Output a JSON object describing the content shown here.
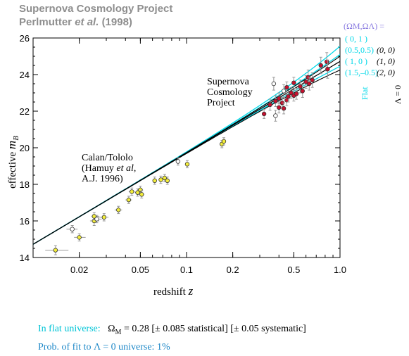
{
  "header": {
    "line1": "Supernova Cosmology Project",
    "line2_main": "Perlmutter",
    "line2_etal": "et al.",
    "line2_year": "(1998)"
  },
  "colors": {
    "scp_fill": "#c8102e",
    "calan_fill": "#f4ee3a",
    "flat_cyan": "#00d8e8",
    "legend_purple": "#8a7be0",
    "lambda_black": "#000000",
    "prob_blue": "#1e88c8"
  },
  "chart_data": {
    "type": "scatter",
    "xscale": "log",
    "xlim": [
      0.01,
      1.0
    ],
    "ylim": [
      14,
      26
    ],
    "xlabel": "redshift",
    "xlabel_var": "z",
    "ylabel": "effective",
    "ylabel_var": "m",
    "ylabel_sub": "B",
    "xticks": [
      0.02,
      0.05,
      0.1,
      0.2,
      0.5,
      1.0
    ],
    "xtick_labels": [
      "0.02",
      "0.05",
      "0.1",
      "0.2",
      "0.5",
      "1.0"
    ],
    "yticks": [
      14,
      16,
      18,
      20,
      22,
      24,
      26
    ],
    "ytick_labels": [
      "14",
      "16",
      "18",
      "20",
      "22",
      "24",
      "26"
    ],
    "labels": {
      "calan": [
        "Calan/Tololo",
        "(Hamuy ",
        "et al",
        ",",
        "A.J. 1996)"
      ],
      "scp": [
        "Supernova",
        "Cosmology",
        "Project"
      ]
    },
    "legend": {
      "header": "(Ω",
      "header_full": "(ΩM,ΩΛ) =",
      "flat": [
        "( 0,   1 )",
        "(0.5,0.5)",
        "( 1,   0 )",
        "(1.5,–0.5)"
      ],
      "lambda0": [
        "(0, 0)",
        "(1, 0)",
        "(2, 0)"
      ],
      "flat_label": "Flat",
      "lambda_label": "Λ = 0"
    },
    "models": [
      {
        "group": "flat",
        "omega_m": 0,
        "omega_l": 1,
        "z1": 0.5,
        "m_at_1": 25.55
      },
      {
        "group": "flat",
        "omega_m": 0.5,
        "omega_l": 0.5,
        "m_at_1": 25.1
      },
      {
        "group": "flat",
        "omega_m": 1,
        "omega_l": 0,
        "m_at_1": 24.72
      },
      {
        "group": "flat",
        "omega_m": 1.5,
        "omega_l": -0.5,
        "m_at_1": 24.45
      },
      {
        "group": "lambda0",
        "omega_m": 0,
        "omega_l": 0,
        "m_at_1": 25.0
      },
      {
        "group": "lambda0",
        "omega_m": 1,
        "omega_l": 0,
        "m_at_1": 24.72
      },
      {
        "group": "lambda0",
        "omega_m": 2,
        "omega_l": 0,
        "m_at_1": 24.25
      }
    ],
    "calan_points": [
      {
        "z": 0.014,
        "m": 14.4,
        "exl": 0.012,
        "exh": 0.017,
        "ey": 0.25,
        "open": false
      },
      {
        "z": 0.018,
        "m": 15.55,
        "exl": 0.0165,
        "exh": 0.0195,
        "ey": 0.2,
        "open": true
      },
      {
        "z": 0.02,
        "m": 15.1,
        "exl": 0.0185,
        "exh": 0.022,
        "ey": 0.2,
        "open": false
      },
      {
        "z": 0.025,
        "m": 16.0,
        "exl": 0.0235,
        "exh": 0.027,
        "ey": 0.25,
        "open": false
      },
      {
        "z": 0.025,
        "m": 16.25,
        "exl": 0.024,
        "exh": 0.027,
        "ey": 0.2,
        "open": false
      },
      {
        "z": 0.026,
        "m": 16.1,
        "exl": 0.025,
        "exh": 0.028,
        "ey": 0.2,
        "open": true
      },
      {
        "z": 0.029,
        "m": 16.2,
        "exl": 0.027,
        "exh": 0.031,
        "ey": 0.2,
        "open": false
      },
      {
        "z": 0.036,
        "m": 16.6,
        "exl": 0.034,
        "exh": 0.038,
        "ey": 0.2,
        "open": false
      },
      {
        "z": 0.042,
        "m": 17.15,
        "exl": 0.04,
        "exh": 0.044,
        "ey": 0.2,
        "open": false
      },
      {
        "z": 0.044,
        "m": 17.6,
        "exl": 0.042,
        "exh": 0.046,
        "ey": 0.2,
        "open": false
      },
      {
        "z": 0.048,
        "m": 17.55,
        "exl": 0.046,
        "exh": 0.05,
        "ey": 0.2,
        "open": false
      },
      {
        "z": 0.05,
        "m": 17.7,
        "exl": 0.048,
        "exh": 0.052,
        "ey": 0.2,
        "open": false
      },
      {
        "z": 0.051,
        "m": 17.45,
        "exl": 0.049,
        "exh": 0.053,
        "ey": 0.2,
        "open": false
      },
      {
        "z": 0.062,
        "m": 18.2,
        "exl": 0.06,
        "exh": 0.064,
        "ey": 0.2,
        "open": false
      },
      {
        "z": 0.068,
        "m": 18.25,
        "exl": 0.066,
        "exh": 0.07,
        "ey": 0.2,
        "open": false
      },
      {
        "z": 0.072,
        "m": 18.35,
        "exl": 0.07,
        "exh": 0.074,
        "ey": 0.2,
        "open": false
      },
      {
        "z": 0.075,
        "m": 18.2,
        "exl": 0.073,
        "exh": 0.077,
        "ey": 0.2,
        "open": false
      },
      {
        "z": 0.088,
        "m": 19.25,
        "exl": 0.086,
        "exh": 0.09,
        "ey": 0.2,
        "open": true
      },
      {
        "z": 0.101,
        "m": 19.1,
        "exl": 0.099,
        "exh": 0.103,
        "ey": 0.2,
        "open": false
      },
      {
        "z": 0.17,
        "m": 20.2,
        "exl": 0.168,
        "exh": 0.172,
        "ey": 0.2,
        "open": false
      },
      {
        "z": 0.175,
        "m": 20.35,
        "exl": 0.173,
        "exh": 0.177,
        "ey": 0.2,
        "open": false
      }
    ],
    "scp_points": [
      {
        "z": 0.32,
        "m": 21.85,
        "ey": 0.25,
        "open": false
      },
      {
        "z": 0.35,
        "m": 22.35,
        "ey": 0.3,
        "open": false
      },
      {
        "z": 0.37,
        "m": 23.5,
        "ey": 0.35,
        "open": true
      },
      {
        "z": 0.38,
        "m": 21.75,
        "ey": 0.3,
        "open": true
      },
      {
        "z": 0.38,
        "m": 22.55,
        "ey": 0.3,
        "open": false
      },
      {
        "z": 0.4,
        "m": 22.2,
        "ey": 0.3,
        "open": false
      },
      {
        "z": 0.4,
        "m": 22.7,
        "ey": 0.3,
        "open": false
      },
      {
        "z": 0.42,
        "m": 22.45,
        "ey": 0.3,
        "open": false
      },
      {
        "z": 0.43,
        "m": 23.1,
        "ey": 0.35,
        "open": true
      },
      {
        "z": 0.43,
        "m": 22.15,
        "ey": 0.3,
        "open": false
      },
      {
        "z": 0.45,
        "m": 22.6,
        "ey": 0.3,
        "open": false
      },
      {
        "z": 0.45,
        "m": 23.3,
        "ey": 0.3,
        "open": false
      },
      {
        "z": 0.46,
        "m": 22.8,
        "ey": 0.3,
        "open": false
      },
      {
        "z": 0.48,
        "m": 23.0,
        "ey": 0.3,
        "open": false
      },
      {
        "z": 0.5,
        "m": 22.85,
        "ey": 0.3,
        "open": false
      },
      {
        "z": 0.5,
        "m": 23.55,
        "ey": 0.3,
        "open": false
      },
      {
        "z": 0.52,
        "m": 22.95,
        "ey": 0.3,
        "open": false
      },
      {
        "z": 0.55,
        "m": 23.35,
        "ey": 0.35,
        "open": false
      },
      {
        "z": 0.57,
        "m": 23.1,
        "ey": 0.35,
        "open": false
      },
      {
        "z": 0.6,
        "m": 23.6,
        "ey": 0.35,
        "open": false
      },
      {
        "z": 0.62,
        "m": 23.85,
        "ey": 0.4,
        "open": false
      },
      {
        "z": 0.63,
        "m": 23.5,
        "ey": 0.35,
        "open": false
      },
      {
        "z": 0.66,
        "m": 23.7,
        "ey": 0.4,
        "open": false
      },
      {
        "z": 0.75,
        "m": 24.5,
        "ey": 0.45,
        "open": false
      },
      {
        "z": 0.82,
        "m": 24.7,
        "ey": 0.5,
        "open": false
      },
      {
        "z": 0.83,
        "m": 24.3,
        "ey": 0.5,
        "open": false
      }
    ]
  },
  "footnote": {
    "flat_prefix": "In flat universe:",
    "omega_sym": "Ω",
    "omega_sub": "M",
    "eq": " = 0.28 [± 0.085 statistical] [± 0.05 systematic]",
    "prob_text": "Prob. of fit to Λ = 0 universe:  1%"
  }
}
